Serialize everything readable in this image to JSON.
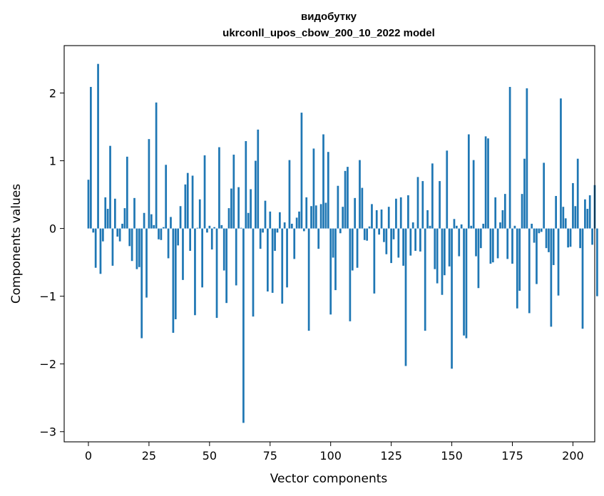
{
  "chart_data": {
    "type": "bar",
    "title": [
      "видобутку",
      "ukrconll_upos_cbow_200_10_2022 model"
    ],
    "xlabel": "Vector components",
    "ylabel": "Components values",
    "xlim": [
      -10,
      209
    ],
    "ylim": [
      -3.15,
      2.7
    ],
    "xticks": [
      0,
      25,
      50,
      75,
      100,
      125,
      150,
      175,
      200
    ],
    "yticks": [
      -3,
      -2,
      -1,
      0,
      1,
      2
    ],
    "ytick_labels": [
      "−3",
      "−2",
      "−1",
      "0",
      "1",
      "2"
    ],
    "grid": false,
    "bar_color": "#1f77b4",
    "series": [
      {
        "x_start": 0,
        "values": [
          0.72,
          2.09,
          -0.06,
          -0.58,
          2.43,
          -0.67,
          -0.19,
          0.46,
          0.29,
          1.22,
          -0.55,
          0.44,
          -0.12,
          -0.19,
          0.07,
          0.3,
          1.06,
          -0.26,
          -0.48,
          0.45,
          -0.6,
          -0.57,
          -1.62,
          0.23,
          -1.02,
          1.32,
          0.21,
          0.05,
          1.86,
          -0.16,
          -0.17,
          0.02,
          0.94,
          -0.44,
          0.17,
          -1.54,
          -1.34,
          -0.25,
          0.33,
          -0.76,
          0.65,
          0.82,
          -0.33,
          0.78,
          -1.28,
          0.01,
          0.43,
          -0.87,
          1.08,
          -0.06,
          0.04,
          -0.31,
          0.02,
          -1.32,
          1.2,
          0.05,
          -0.62,
          -1.1,
          0.3,
          0.59,
          1.09,
          -0.84,
          0.61,
          0.01,
          -2.87,
          1.29,
          0.23,
          0.58,
          -1.3,
          1.0,
          1.46,
          -0.3,
          -0.06,
          0.41,
          -0.93,
          0.25,
          -0.95,
          -0.33,
          -0.06,
          0.24,
          -1.11,
          0.09,
          -0.87,
          1.01,
          0.07,
          -0.45,
          0.16,
          0.25,
          1.71,
          -0.04,
          0.46,
          -1.51,
          0.33,
          1.18,
          0.34,
          -0.3,
          0.36,
          1.39,
          0.38,
          1.13,
          -1.27,
          -0.43,
          -0.91,
          0.63,
          -0.07,
          0.32,
          0.85,
          0.91,
          -1.37,
          -0.62,
          0.45,
          -0.58,
          1.01,
          0.6,
          -0.17,
          -0.18,
          0.03,
          0.36,
          -0.96,
          0.27,
          -0.09,
          0.28,
          -0.2,
          -0.38,
          0.32,
          -0.51,
          -0.16,
          0.44,
          -0.43,
          0.46,
          -0.55,
          -2.03,
          0.49,
          -0.4,
          0.09,
          -0.33,
          0.76,
          -0.34,
          0.7,
          -1.51,
          0.27,
          0.04,
          0.96,
          -0.6,
          -0.81,
          0.7,
          -0.98,
          -0.69,
          1.15,
          -0.56,
          -2.07,
          0.14,
          0.04,
          -0.41,
          0.06,
          -1.58,
          -1.62,
          1.39,
          0.04,
          1.01,
          -0.41,
          -0.88,
          -0.29,
          0.07,
          1.36,
          1.33,
          -0.52,
          -0.5,
          0.46,
          -0.44,
          0.09,
          0.27,
          0.51,
          -0.45,
          2.09,
          -0.52,
          0.04,
          -1.18,
          -0.92,
          0.51,
          1.03,
          2.07,
          -1.25,
          0.07,
          -0.21,
          -0.82,
          -0.07,
          -0.05,
          0.97,
          -0.29,
          -0.35,
          -1.45,
          -0.54,
          0.48,
          -0.99,
          1.92,
          0.32,
          0.15,
          -0.28,
          -0.27,
          0.67,
          0.33,
          1.03,
          -0.29,
          -1.48,
          0.43,
          0.29,
          0.49,
          -0.24,
          0.64,
          -1.0
        ]
      }
    ]
  }
}
